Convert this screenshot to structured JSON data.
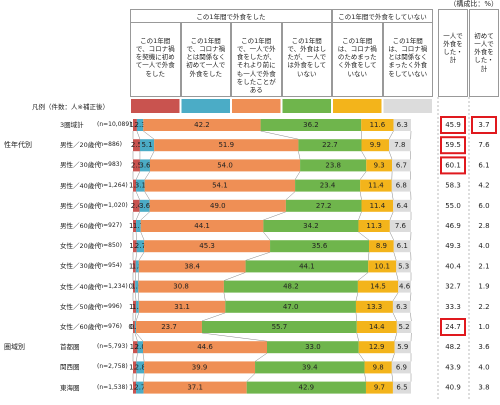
{
  "chart_data": {
    "type": "bar",
    "orientation": "horizontal",
    "stacked": true,
    "unit_note": "（構成比：%）",
    "header_groups": [
      "この1年間で外食をした",
      "この1年間で外食をしていない"
    ],
    "legend_title": "凡例（件数：人※補正後）",
    "row_groups": [
      "性年代別",
      "圏域別"
    ],
    "categories": [
      "3圏域計",
      "男性／20歳代",
      "男性／30歳代",
      "男性／40歳代",
      "男性／50歳代",
      "男性／60歳代",
      "女性／20歳代",
      "女性／30歳代",
      "女性／40歳代",
      "女性／50歳代",
      "女性／60歳代",
      "首都圏",
      "関西圏",
      "東海圏"
    ],
    "sample_sizes": [
      "(n=10,089)",
      "(n=886)",
      "(n=983)",
      "(n=1,264)",
      "(n=1,020)",
      "(n=927)",
      "(n=850)",
      "(n=954)",
      "(n=1,234)",
      "(n=996)",
      "(n=976)",
      "(n=5,793)",
      "(n=2,758)",
      "(n=1,538)"
    ],
    "xlim": [
      0,
      100
    ],
    "series": [
      {
        "name": "この1年間で、コロナ禍を契機に初めて一人で外食をした",
        "color": "#c9534f",
        "values": [
          1.4,
          2.5,
          2.5,
          1.1,
          2.4,
          1.1,
          1.3,
          1.0,
          0.8,
          1.1,
          0.7,
          1.6,
          1.2,
          1.1
        ],
        "value_labels": [
          "1.4",
          "2.5",
          "2.5",
          "1.1",
          "2.4",
          "1.1",
          "1.3",
          "1.0",
          "0.8",
          "1.1",
          "0.7",
          "1.6",
          "1.2",
          "1.1"
        ]
      },
      {
        "name": "この1年間で、コロナ禍とは関係なく初めて一人で外食をした",
        "color": "#4bacc6",
        "values": [
          2.3,
          5.1,
          3.6,
          3.1,
          3.6,
          1.7,
          2.7,
          1.1,
          1.1,
          1.0,
          0.4,
          2.0,
          2.8,
          2.7
        ],
        "value_labels": [
          "2.3",
          "5.1",
          "3.6",
          "3.1",
          "3.6",
          "1.7",
          "2.7",
          "1.1",
          "1.1",
          "1.0",
          "0.4",
          "2.0",
          "2.8",
          "2.7"
        ]
      },
      {
        "name": "この1年間で、一人で外食をしたが、それより前にも一人で外食をしたことがある",
        "color": "#ef8f55",
        "values": [
          42.2,
          51.9,
          54.0,
          54.1,
          49.0,
          44.1,
          45.3,
          38.4,
          30.8,
          31.1,
          23.7,
          44.6,
          39.9,
          37.1
        ],
        "value_labels": [
          "42.2",
          "51.9",
          "54.0",
          "54.1",
          "49.0",
          "44.1",
          "45.3",
          "38.4",
          "30.8",
          "31.1",
          "23.7",
          "44.6",
          "39.9",
          "37.1"
        ]
      },
      {
        "name": "この1年間で、外食はしたが、一人では外食をしていない",
        "color": "#6fb54c",
        "values": [
          36.2,
          22.7,
          23.8,
          23.4,
          27.2,
          34.2,
          35.6,
          44.1,
          48.2,
          47.0,
          55.7,
          33.0,
          39.4,
          42.9
        ],
        "value_labels": [
          "36.2",
          "22.7",
          "23.8",
          "23.4",
          "27.2",
          "34.2",
          "35.6",
          "44.1",
          "48.2",
          "47.0",
          "55.7",
          "33.0",
          "39.4",
          "42.9"
        ]
      },
      {
        "name": "この1年間は、コロナ禍のためまったく外食をしていない",
        "color": "#f3b41b",
        "values": [
          11.6,
          9.9,
          9.3,
          11.4,
          11.4,
          11.3,
          8.9,
          10.1,
          14.5,
          13.3,
          14.4,
          12.9,
          9.8,
          9.7
        ],
        "value_labels": [
          "11.6",
          "9.9",
          "9.3",
          "11.4",
          "11.4",
          "11.3",
          "8.9",
          "10.1",
          "14.5",
          "13.3",
          "14.4",
          "12.9",
          "9.8",
          "9.7"
        ]
      },
      {
        "name": "この1年間は、コロナ禍とは関係なくまったく外食をしていない",
        "color": "#dcdcdc",
        "values": [
          6.3,
          7.8,
          6.7,
          6.8,
          6.4,
          7.6,
          6.1,
          5.3,
          4.6,
          6.3,
          5.2,
          5.9,
          6.9,
          6.5
        ],
        "value_labels": [
          "6.3",
          "7.8",
          "6.7",
          "6.8",
          "6.4",
          "7.6",
          "6.1",
          "5.3",
          "4.6",
          "6.3",
          "5.2",
          "5.9",
          "6.9",
          "6.5"
        ]
      }
    ],
    "totals": [
      {
        "name": "一人で外食をした・計",
        "values": [
          45.9,
          59.5,
          60.1,
          58.3,
          55.0,
          46.9,
          49.3,
          40.4,
          32.7,
          33.3,
          24.7,
          48.2,
          43.9,
          40.9
        ],
        "value_labels": [
          "45.9",
          "59.5",
          "60.1",
          "58.3",
          "55.0",
          "46.9",
          "49.3",
          "40.4",
          "32.7",
          "33.3",
          "24.7",
          "48.2",
          "43.9",
          "40.9"
        ],
        "highlight": [
          true,
          true,
          true,
          false,
          false,
          false,
          false,
          false,
          false,
          false,
          true,
          false,
          false,
          false
        ]
      },
      {
        "name": "初めて一人で外食をした・計",
        "values": [
          3.7,
          7.6,
          6.1,
          4.2,
          6.0,
          2.8,
          4.0,
          2.1,
          1.9,
          2.2,
          1.0,
          3.6,
          4.0,
          3.8
        ],
        "value_labels": [
          "3.7",
          "7.6",
          "6.1",
          "4.2",
          "6.0",
          "2.8",
          "4.0",
          "2.1",
          "1.9",
          "2.2",
          "1.0",
          "3.6",
          "4.0",
          "3.8"
        ],
        "highlight": [
          true,
          false,
          false,
          false,
          false,
          false,
          false,
          false,
          false,
          false,
          false,
          false,
          false,
          false
        ]
      }
    ]
  }
}
